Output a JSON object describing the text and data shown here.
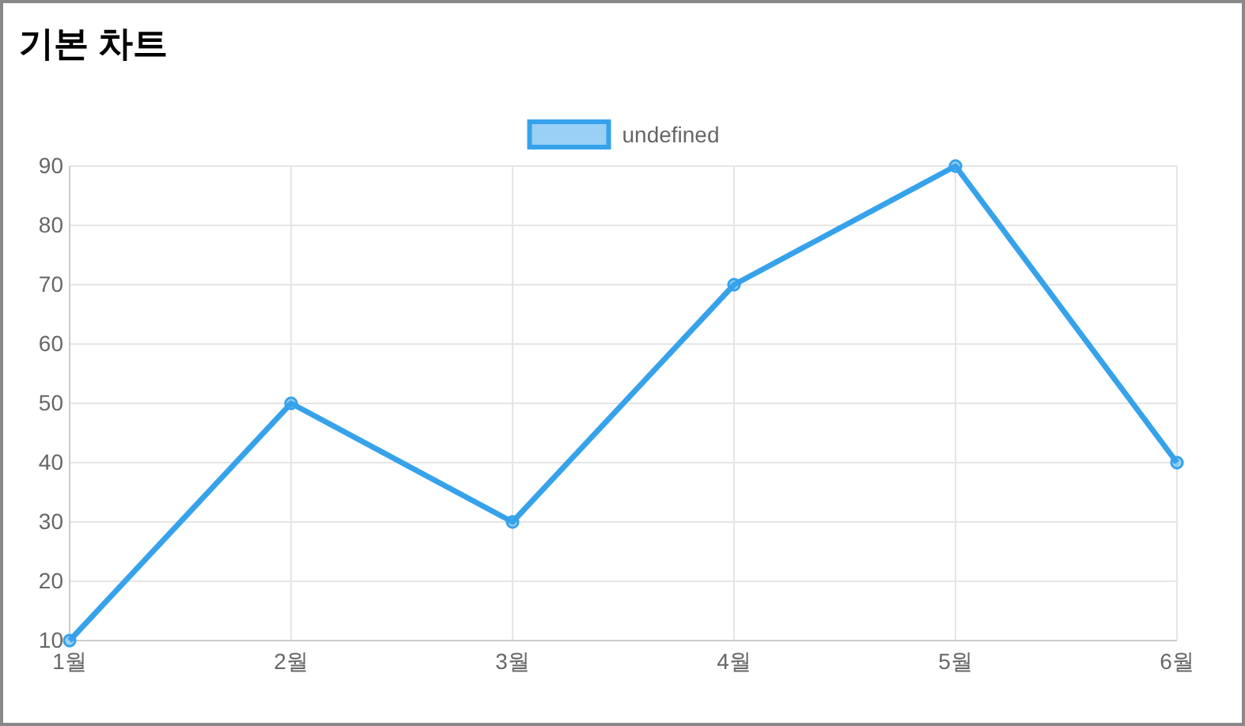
{
  "chart_data": {
    "type": "line",
    "title": "기본 차트",
    "categories": [
      "1월",
      "2월",
      "3월",
      "4월",
      "5월",
      "6월"
    ],
    "series": [
      {
        "name": "undefined",
        "color": "#36a2eb",
        "values": [
          10,
          50,
          30,
          70,
          90,
          40
        ]
      }
    ],
    "ylim": [
      10,
      90
    ],
    "yticks": [
      10,
      20,
      30,
      40,
      50,
      60,
      70,
      80,
      90
    ],
    "grid": true,
    "legend": "top",
    "marker": "circle",
    "line_style": "solid"
  }
}
